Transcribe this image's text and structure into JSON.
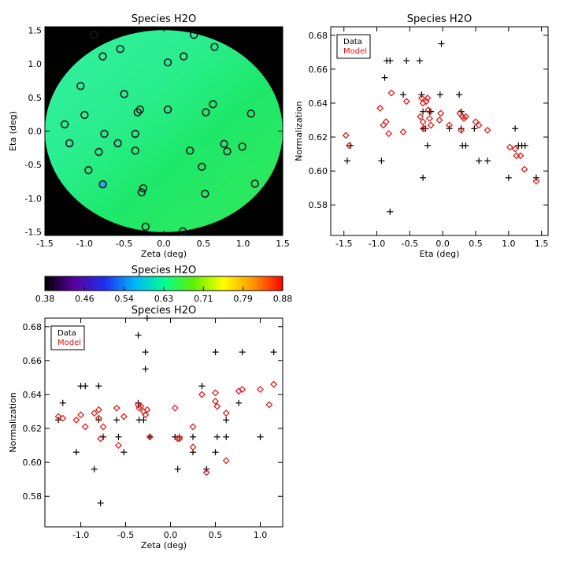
{
  "chart_data": [
    {
      "id": "map",
      "type": "scatter",
      "title": "Species H2O",
      "xlabel": "Zeta (deg)",
      "ylabel": "Eta (deg)",
      "xlim": [
        -1.5,
        1.5
      ],
      "ylim": [
        -1.55,
        1.55
      ],
      "xticks": [
        "-1.5",
        "-1.0",
        "-0.5",
        "0.0",
        "0.5",
        "1.0",
        "1.5"
      ],
      "xtick_values": [
        -1.5,
        -1.0,
        -0.5,
        0.0,
        0.5,
        1.0,
        1.5
      ],
      "yticks": [
        "-1.5",
        "-1.0",
        "-0.5",
        "0.0",
        "0.5",
        "1.0",
        "1.5"
      ],
      "ytick_values": [
        -1.5,
        -1.0,
        -0.5,
        0.0,
        0.5,
        1.0,
        1.5
      ],
      "field_radius": 1.5,
      "background_color": "#000000",
      "field_colors": {
        "top": "#33f0a0",
        "left": "#2aee90",
        "center": "#1ee86a",
        "right": "#33ea58"
      },
      "marker_color": "#1a1a1a",
      "highlight_marker_fill": "#29a8e8",
      "points": [
        [
          -0.88,
          1.43
        ],
        [
          0.38,
          1.43
        ],
        [
          0.64,
          1.25
        ],
        [
          -0.55,
          1.22
        ],
        [
          -0.77,
          1.11
        ],
        [
          0.25,
          1.11
        ],
        [
          0.05,
          1.02
        ],
        [
          -1.05,
          0.67
        ],
        [
          -0.5,
          0.55
        ],
        [
          0.62,
          0.4
        ],
        [
          0.05,
          0.32
        ],
        [
          -0.3,
          0.32
        ],
        [
          -0.33,
          0.28
        ],
        [
          0.53,
          0.28
        ],
        [
          1.1,
          0.26
        ],
        [
          -1.0,
          0.24
        ],
        [
          -1.25,
          0.1
        ],
        [
          -0.75,
          -0.04
        ],
        [
          -0.36,
          -0.04
        ],
        [
          -1.19,
          -0.18
        ],
        [
          -0.58,
          -0.18
        ],
        [
          0.76,
          -0.19
        ],
        [
          0.99,
          -0.23
        ],
        [
          -0.36,
          -0.29
        ],
        [
          0.33,
          -0.29
        ],
        [
          0.8,
          -0.3
        ],
        [
          -0.82,
          -0.31
        ],
        [
          0.48,
          -0.53
        ],
        [
          -0.95,
          -0.58
        ],
        [
          1.15,
          -0.78
        ],
        [
          -0.77,
          -0.79
        ],
        [
          -0.26,
          -0.85
        ],
        [
          -0.28,
          -0.91
        ],
        [
          0.52,
          -0.93
        ],
        [
          -0.23,
          -1.42
        ],
        [
          0.24,
          -1.49
        ]
      ],
      "highlight_points": [
        [
          -0.77,
          -0.79
        ]
      ]
    },
    {
      "id": "colorbar",
      "type": "heatmap",
      "title": "Species H2O",
      "range": [
        0.38,
        0.88
      ],
      "ticks": [
        "0.38",
        "0.46",
        "0.54",
        "0.63",
        "0.71",
        "0.79",
        "0.88"
      ],
      "stops": [
        "#000000",
        "#5a00a0",
        "#1e2ef0",
        "#00b4ff",
        "#00ff96",
        "#60f000",
        "#ffff00",
        "#ff9600",
        "#ff0000"
      ]
    },
    {
      "id": "eta_plot",
      "type": "scatter",
      "title": "Species H2O",
      "xlabel": "Eta (deg)",
      "ylabel": "Normalization",
      "xlim": [
        -1.7,
        1.6
      ],
      "ylim": [
        0.562,
        0.685
      ],
      "xticks": [
        "-1.5",
        "-1.0",
        "-0.5",
        "0.0",
        "0.5",
        "1.0",
        "1.5"
      ],
      "xtick_values": [
        -1.5,
        -1.0,
        -0.5,
        0.0,
        0.5,
        1.0,
        1.5
      ],
      "yticks": [
        "0.58",
        "0.60",
        "0.62",
        "0.64",
        "0.66",
        "0.68"
      ],
      "ytick_values": [
        0.58,
        0.6,
        0.62,
        0.64,
        0.66,
        0.68
      ],
      "legend": {
        "placement": "top-left"
      },
      "series": [
        {
          "name": "Data",
          "marker": "plus",
          "color": "#000000",
          "points": [
            [
              -1.45,
              0.606
            ],
            [
              -1.4,
              0.615
            ],
            [
              -0.93,
              0.606
            ],
            [
              -0.88,
              0.655
            ],
            [
              -0.85,
              0.665
            ],
            [
              -0.8,
              0.665
            ],
            [
              -0.8,
              0.576
            ],
            [
              -0.6,
              0.645
            ],
            [
              -0.55,
              0.665
            ],
            [
              -0.35,
              0.665
            ],
            [
              -0.32,
              0.645
            ],
            [
              -0.3,
              0.635
            ],
            [
              -0.3,
              0.625
            ],
            [
              -0.3,
              0.596
            ],
            [
              -0.26,
              0.625
            ],
            [
              -0.23,
              0.615
            ],
            [
              -0.2,
              0.635
            ],
            [
              -0.18,
              0.635
            ],
            [
              -0.04,
              0.645
            ],
            [
              -0.02,
              0.675
            ],
            [
              0.1,
              0.625
            ],
            [
              0.25,
              0.645
            ],
            [
              0.28,
              0.635
            ],
            [
              0.28,
              0.625
            ],
            [
              0.3,
              0.615
            ],
            [
              0.35,
              0.615
            ],
            [
              0.48,
              0.625
            ],
            [
              0.55,
              0.606
            ],
            [
              0.68,
              0.606
            ],
            [
              1.0,
              0.596
            ],
            [
              1.1,
              0.625
            ],
            [
              1.15,
              0.615
            ],
            [
              1.2,
              0.615
            ],
            [
              1.25,
              0.615
            ],
            [
              1.42,
              0.596
            ]
          ]
        },
        {
          "name": "Model",
          "marker": "diamond",
          "color": "#dd1111",
          "points": [
            [
              -1.47,
              0.621
            ],
            [
              -1.42,
              0.615
            ],
            [
              -0.95,
              0.637
            ],
            [
              -0.9,
              0.627
            ],
            [
              -0.86,
              0.629
            ],
            [
              -0.82,
              0.622
            ],
            [
              -0.78,
              0.646
            ],
            [
              -0.6,
              0.623
            ],
            [
              -0.55,
              0.641
            ],
            [
              -0.34,
              0.632
            ],
            [
              -0.32,
              0.643
            ],
            [
              -0.3,
              0.629
            ],
            [
              -0.3,
              0.64
            ],
            [
              -0.29,
              0.625
            ],
            [
              -0.25,
              0.641
            ],
            [
              -0.23,
              0.643
            ],
            [
              -0.22,
              0.636
            ],
            [
              -0.2,
              0.631
            ],
            [
              -0.18,
              0.627
            ],
            [
              -0.05,
              0.63
            ],
            [
              -0.03,
              0.634
            ],
            [
              0.1,
              0.627
            ],
            [
              0.26,
              0.634
            ],
            [
              0.3,
              0.632
            ],
            [
              0.32,
              0.631
            ],
            [
              0.35,
              0.632
            ],
            [
              0.28,
              0.624
            ],
            [
              0.5,
              0.629
            ],
            [
              0.55,
              0.627
            ],
            [
              0.68,
              0.624
            ],
            [
              1.02,
              0.614
            ],
            [
              1.1,
              0.613
            ],
            [
              1.12,
              0.609
            ],
            [
              1.18,
              0.609
            ],
            [
              1.24,
              0.601
            ],
            [
              1.42,
              0.594
            ]
          ]
        }
      ]
    },
    {
      "id": "zeta_plot",
      "type": "scatter",
      "title": "Species H2O",
      "xlabel": "Zeta (deg)",
      "ylabel": "Normalization",
      "xlim": [
        -1.4,
        1.25
      ],
      "ylim": [
        0.562,
        0.685
      ],
      "xticks": [
        "-1.0",
        "-0.5",
        "0.0",
        "0.5",
        "1.0"
      ],
      "xtick_values": [
        -1.0,
        -0.5,
        0.0,
        0.5,
        1.0
      ],
      "yticks": [
        "0.58",
        "0.60",
        "0.62",
        "0.64",
        "0.66",
        "0.68"
      ],
      "ytick_values": [
        0.58,
        0.6,
        0.62,
        0.64,
        0.66,
        0.68
      ],
      "legend": {
        "placement": "top-left"
      },
      "series": [
        {
          "name": "Data",
          "marker": "plus",
          "color": "#000000",
          "points": [
            [
              -1.25,
              0.625
            ],
            [
              -1.2,
              0.635
            ],
            [
              -1.05,
              0.606
            ],
            [
              -1.0,
              0.645
            ],
            [
              -0.95,
              0.645
            ],
            [
              -0.85,
              0.596
            ],
            [
              -0.8,
              0.645
            ],
            [
              -0.8,
              0.625
            ],
            [
              -0.78,
              0.576
            ],
            [
              -0.75,
              0.615
            ],
            [
              -0.6,
              0.625
            ],
            [
              -0.58,
              0.615
            ],
            [
              -0.52,
              0.606
            ],
            [
              -0.36,
              0.675
            ],
            [
              -0.36,
              0.635
            ],
            [
              -0.35,
              0.625
            ],
            [
              -0.3,
              0.625
            ],
            [
              -0.28,
              0.655
            ],
            [
              -0.28,
              0.665
            ],
            [
              -0.26,
              0.685
            ],
            [
              -0.23,
              0.615
            ],
            [
              0.05,
              0.615
            ],
            [
              0.08,
              0.596
            ],
            [
              0.1,
              0.615
            ],
            [
              0.25,
              0.606
            ],
            [
              0.25,
              0.615
            ],
            [
              0.35,
              0.645
            ],
            [
              0.4,
              0.596
            ],
            [
              0.5,
              0.606
            ],
            [
              0.5,
              0.665
            ],
            [
              0.52,
              0.615
            ],
            [
              0.62,
              0.625
            ],
            [
              0.62,
              0.615
            ],
            [
              0.76,
              0.635
            ],
            [
              0.8,
              0.665
            ],
            [
              1.0,
              0.615
            ],
            [
              1.15,
              0.665
            ]
          ]
        },
        {
          "name": "Model",
          "marker": "diamond",
          "color": "#dd1111",
          "points": [
            [
              -1.25,
              0.627
            ],
            [
              -1.2,
              0.626
            ],
            [
              -1.05,
              0.625
            ],
            [
              -1.0,
              0.628
            ],
            [
              -0.95,
              0.621
            ],
            [
              -0.85,
              0.629
            ],
            [
              -0.8,
              0.631
            ],
            [
              -0.8,
              0.626
            ],
            [
              -0.78,
              0.614
            ],
            [
              -0.75,
              0.621
            ],
            [
              -0.6,
              0.632
            ],
            [
              -0.58,
              0.61
            ],
            [
              -0.52,
              0.627
            ],
            [
              -0.36,
              0.634
            ],
            [
              -0.35,
              0.632
            ],
            [
              -0.33,
              0.633
            ],
            [
              -0.3,
              0.63
            ],
            [
              -0.28,
              0.628
            ],
            [
              -0.26,
              0.631
            ],
            [
              -0.23,
              0.615
            ],
            [
              0.05,
              0.632
            ],
            [
              0.08,
              0.614
            ],
            [
              0.1,
              0.614
            ],
            [
              0.25,
              0.621
            ],
            [
              0.25,
              0.609
            ],
            [
              0.35,
              0.64
            ],
            [
              0.4,
              0.594
            ],
            [
              0.5,
              0.641
            ],
            [
              0.5,
              0.636
            ],
            [
              0.52,
              0.633
            ],
            [
              0.62,
              0.629
            ],
            [
              0.62,
              0.601
            ],
            [
              0.76,
              0.642
            ],
            [
              0.8,
              0.643
            ],
            [
              1.0,
              0.643
            ],
            [
              1.1,
              0.634
            ],
            [
              1.15,
              0.646
            ]
          ]
        }
      ]
    }
  ]
}
